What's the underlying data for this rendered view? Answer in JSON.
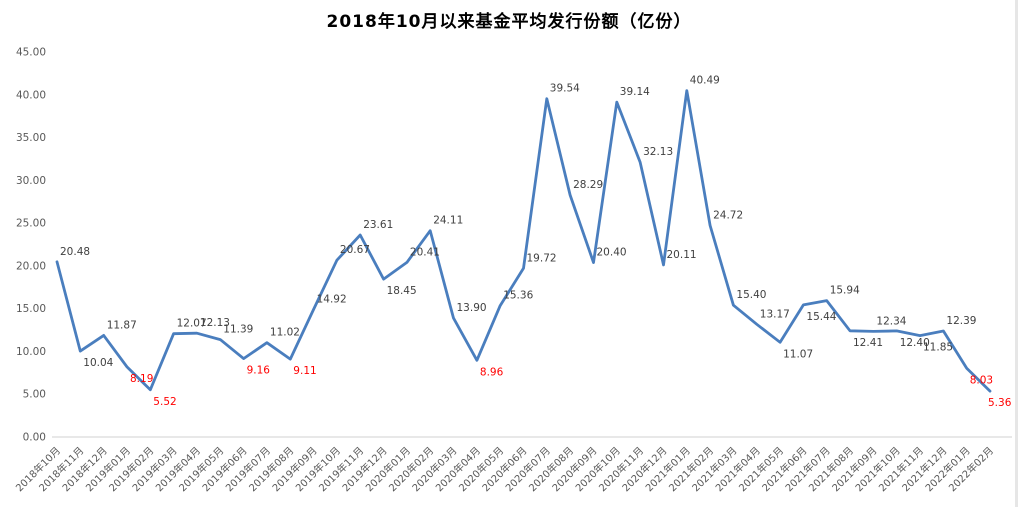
{
  "chart_data": {
    "type": "line",
    "title": "2018年10月以来基金平均发行份额（亿份）",
    "categories": [
      "2018年10月",
      "2018年11月",
      "2018年12月",
      "2019年01月",
      "2019年02月",
      "2019年03月",
      "2019年04月",
      "2019年05月",
      "2019年06月",
      "2019年07月",
      "2019年08月",
      "2019年09月",
      "2019年10月",
      "2019年11月",
      "2019年12月",
      "2020年01月",
      "2020年02月",
      "2020年03月",
      "2020年04月",
      "2020年05月",
      "2020年06月",
      "2020年07月",
      "2020年08月",
      "2020年09月",
      "2020年10月",
      "2020年11月",
      "2020年12月",
      "2021年01月",
      "2021年02月",
      "2021年03月",
      "2021年04月",
      "2021年05月",
      "2021年06月",
      "2021年07月",
      "2021年08月",
      "2021年09月",
      "2021年10月",
      "2021年11月",
      "2021年12月",
      "2022年01月",
      "2022年02月"
    ],
    "values": [
      20.48,
      10.04,
      11.87,
      8.19,
      5.52,
      12.07,
      12.13,
      11.39,
      9.16,
      11.02,
      9.11,
      14.92,
      20.67,
      23.61,
      18.45,
      20.41,
      24.11,
      13.9,
      8.96,
      15.36,
      19.72,
      39.54,
      28.29,
      20.4,
      39.14,
      32.13,
      20.11,
      40.49,
      24.72,
      15.4,
      13.17,
      11.07,
      15.44,
      15.94,
      12.41,
      12.34,
      12.4,
      11.85,
      12.39,
      8.03,
      5.36
    ],
    "ylim": [
      0,
      45
    ],
    "ytick_step": 5,
    "ytick_format": "0.00",
    "grid": false,
    "legend": "none",
    "xlabel": "",
    "ylabel": "",
    "line_color": "#4A7EBE",
    "label_color": "#404040",
    "highlight_label_color": "#FF0000",
    "axis_label_color": "#595959",
    "axis_line_color": "#D0D0D0",
    "highlight_indices": [
      3,
      4,
      8,
      10,
      18,
      39,
      40
    ],
    "labels_below_indices": [
      1,
      3,
      4,
      8,
      10,
      14,
      18,
      31,
      32,
      34,
      36,
      37,
      39,
      40
    ]
  }
}
